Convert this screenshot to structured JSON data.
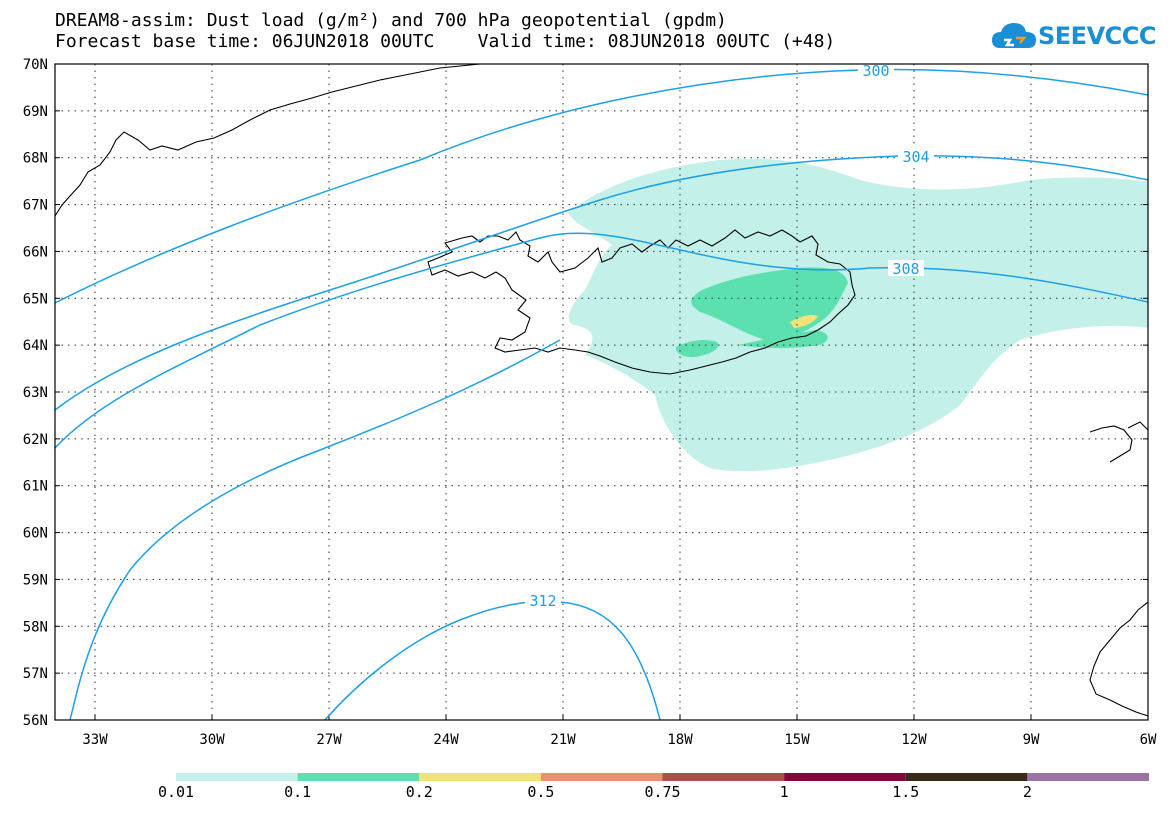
{
  "title_line1": "DREAM8-assim: Dust load (g/m²) and 700 hPa geopotential (gpdm)",
  "title_line2": "Forecast base time: 06JUN2018 00UTC    Valid time: 08JUN2018 00UTC (+48)",
  "logo_text": "SEEVCCC",
  "colors": {
    "contour": "#1ca0e8",
    "coast": "#000000",
    "grid": "#333333",
    "bins": [
      "#c3f0e8",
      "#5ce0b0",
      "#f0e478",
      "#e89070",
      "#a8524a",
      "#86083a",
      "#3c2a18",
      "#9c74a4"
    ]
  },
  "map": {
    "lat_labels": [
      "70N",
      "69N",
      "68N",
      "67N",
      "66N",
      "65N",
      "64N",
      "63N",
      "62N",
      "61N",
      "60N",
      "59N",
      "58N",
      "57N",
      "56N"
    ],
    "lon_labels": [
      "33W",
      "30W",
      "27W",
      "24W",
      "21W",
      "18W",
      "15W",
      "12W",
      "9W",
      "6W"
    ],
    "contour_labels": [
      "300",
      "304",
      "308",
      "312"
    ]
  },
  "legend": {
    "labels": [
      "0.01",
      "0.1",
      "0.2",
      "0.5",
      "0.75",
      "1",
      "1.5",
      "2"
    ]
  }
}
